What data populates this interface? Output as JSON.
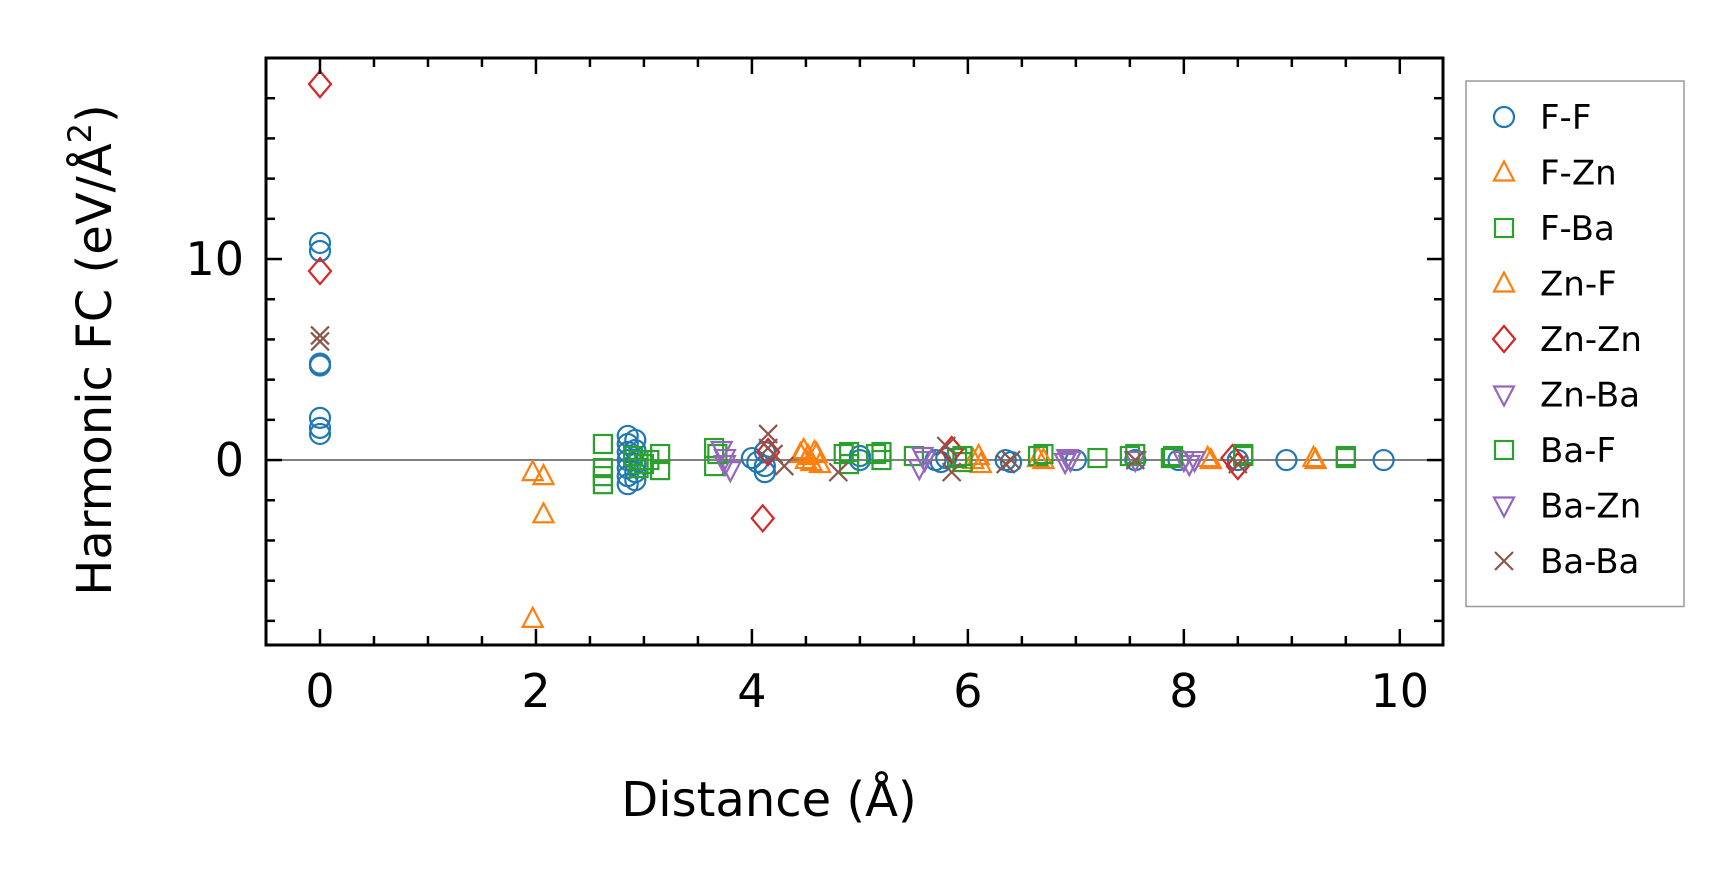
{
  "chart_data": {
    "type": "scatter",
    "title": "",
    "xlabel": "Distance (Å)",
    "ylabel_main": "Harmonic FC (eV/Å",
    "ylabel_sup": "2",
    "ylabel_close": ")",
    "xlim": [
      -0.5,
      10.4
    ],
    "ylim": [
      -9.2,
      20.0
    ],
    "xticks": [
      0,
      2,
      4,
      6,
      8,
      10
    ],
    "xtick_labels": [
      "0",
      "2",
      "4",
      "6",
      "8",
      "10"
    ],
    "yticks": [
      0,
      10
    ],
    "ytick_labels": [
      "0",
      "10"
    ],
    "x_minor_step": 0.5,
    "y_minor_step": 2,
    "zero_line": true,
    "grid": false,
    "legend_position": "outside-right",
    "series": [
      {
        "name": "F-F",
        "marker": "circle",
        "color": "#1f77b4",
        "points": [
          [
            0,
            10.8
          ],
          [
            0,
            10.4
          ],
          [
            0,
            4.8
          ],
          [
            0,
            4.7
          ],
          [
            0,
            2.1
          ],
          [
            0,
            1.6
          ],
          [
            0,
            1.3
          ],
          [
            2.85,
            1.2
          ],
          [
            2.85,
            0.8
          ],
          [
            2.85,
            0.4
          ],
          [
            2.85,
            0.0
          ],
          [
            2.85,
            -0.4
          ],
          [
            2.85,
            -0.8
          ],
          [
            2.85,
            -1.2
          ],
          [
            2.92,
            1.0
          ],
          [
            2.92,
            0.5
          ],
          [
            2.92,
            -0.2
          ],
          [
            2.92,
            -0.6
          ],
          [
            2.92,
            -1.0
          ],
          [
            4.0,
            0.1
          ],
          [
            4.05,
            -0.1
          ],
          [
            4.12,
            -0.3
          ],
          [
            4.12,
            -0.6
          ],
          [
            4.12,
            0.4
          ],
          [
            5.0,
            0.0
          ],
          [
            5.0,
            0.2
          ],
          [
            5.7,
            0.0
          ],
          [
            5.75,
            -0.1
          ],
          [
            5.8,
            0.1
          ],
          [
            6.35,
            0.0
          ],
          [
            6.4,
            -0.1
          ],
          [
            7.0,
            0.0
          ],
          [
            7.55,
            0.0
          ],
          [
            7.95,
            0.0
          ],
          [
            8.5,
            0.0
          ],
          [
            8.95,
            0.0
          ],
          [
            9.85,
            0.0
          ]
        ]
      },
      {
        "name": "F-Zn",
        "marker": "triangle-up",
        "color": "#ff7f0e",
        "points": [
          [
            1.97,
            -0.6
          ],
          [
            1.97,
            -7.9
          ],
          [
            2.07,
            -0.8
          ],
          [
            2.07,
            -2.7
          ],
          [
            4.48,
            0.5
          ],
          [
            4.52,
            0.2
          ],
          [
            4.55,
            -0.1
          ],
          [
            4.6,
            0.3
          ],
          [
            4.63,
            -0.2
          ],
          [
            6.05,
            0.0
          ],
          [
            6.12,
            -0.2
          ],
          [
            6.65,
            0.1
          ],
          [
            8.22,
            0.1
          ],
          [
            9.22,
            0.0
          ]
        ]
      },
      {
        "name": "F-Ba",
        "marker": "square",
        "color": "#2ca02c",
        "points": [
          [
            2.62,
            0.8
          ],
          [
            2.62,
            -0.4
          ],
          [
            2.62,
            -0.8
          ],
          [
            2.62,
            -1.2
          ],
          [
            2.95,
            0.0
          ],
          [
            2.95,
            -0.4
          ],
          [
            3.05,
            0.0
          ],
          [
            3.15,
            0.3
          ],
          [
            3.15,
            -0.5
          ],
          [
            3.65,
            0.6
          ],
          [
            3.65,
            -0.3
          ],
          [
            4.85,
            0.3
          ],
          [
            4.9,
            -0.2
          ],
          [
            5.15,
            0.3
          ],
          [
            5.2,
            0.0
          ],
          [
            5.5,
            0.2
          ],
          [
            5.9,
            0.1
          ],
          [
            5.95,
            -0.1
          ],
          [
            6.65,
            0.2
          ],
          [
            7.2,
            0.1
          ],
          [
            7.5,
            0.2
          ],
          [
            7.88,
            0.1
          ],
          [
            8.55,
            0.2
          ],
          [
            9.5,
            0.1
          ]
        ]
      },
      {
        "name": "Zn-F",
        "marker": "triangle-up",
        "color": "#ff7f0e",
        "points": [
          [
            4.45,
            0.3
          ],
          [
            4.5,
            0.0
          ],
          [
            4.58,
            0.4
          ],
          [
            6.1,
            0.2
          ],
          [
            6.7,
            0.0
          ],
          [
            8.25,
            0.0
          ],
          [
            9.2,
            0.1
          ]
        ]
      },
      {
        "name": "Zn-Zn",
        "marker": "diamond",
        "color": "#d62728",
        "points": [
          [
            0,
            18.7
          ],
          [
            0,
            9.4
          ],
          [
            4.1,
            -2.9
          ],
          [
            4.15,
            0.4
          ],
          [
            5.85,
            0.5
          ],
          [
            8.45,
            0.1
          ],
          [
            8.5,
            -0.3
          ]
        ]
      },
      {
        "name": "Zn-Ba",
        "marker": "triangle-down",
        "color": "#9467bd",
        "points": [
          [
            3.75,
            0.1
          ],
          [
            3.8,
            -0.5
          ],
          [
            5.55,
            -0.4
          ],
          [
            5.6,
            0.0
          ],
          [
            6.9,
            -0.1
          ],
          [
            6.95,
            0.0
          ],
          [
            7.55,
            0.0
          ],
          [
            8.05,
            -0.2
          ],
          [
            8.1,
            0.0
          ]
        ]
      },
      {
        "name": "Ba-F",
        "marker": "square",
        "color": "#2ca02c",
        "points": [
          [
            2.9,
            0.2
          ],
          [
            3.0,
            -0.2
          ],
          [
            3.68,
            0.3
          ],
          [
            4.9,
            0.4
          ],
          [
            5.2,
            0.4
          ],
          [
            5.95,
            0.2
          ],
          [
            6.7,
            0.3
          ],
          [
            7.55,
            0.3
          ],
          [
            7.9,
            0.2
          ],
          [
            8.55,
            0.3
          ],
          [
            9.5,
            0.2
          ]
        ]
      },
      {
        "name": "Ba-Zn",
        "marker": "triangle-down",
        "color": "#9467bd",
        "points": [
          [
            3.72,
            0.5
          ],
          [
            3.75,
            -0.2
          ],
          [
            5.58,
            0.2
          ],
          [
            6.92,
            0.1
          ],
          [
            8.0,
            0.0
          ]
        ]
      },
      {
        "name": "Ba-Ba",
        "marker": "x",
        "color": "#8c564b",
        "points": [
          [
            0,
            6.2
          ],
          [
            0,
            5.9
          ],
          [
            4.15,
            1.3
          ],
          [
            4.15,
            0.6
          ],
          [
            4.2,
            0.3
          ],
          [
            4.3,
            -0.3
          ],
          [
            4.8,
            -0.6
          ],
          [
            5.8,
            0.7
          ],
          [
            5.85,
            -0.6
          ],
          [
            6.35,
            -0.2
          ],
          [
            6.4,
            0.0
          ],
          [
            7.55,
            0.0
          ],
          [
            8.5,
            -0.2
          ]
        ]
      }
    ]
  }
}
